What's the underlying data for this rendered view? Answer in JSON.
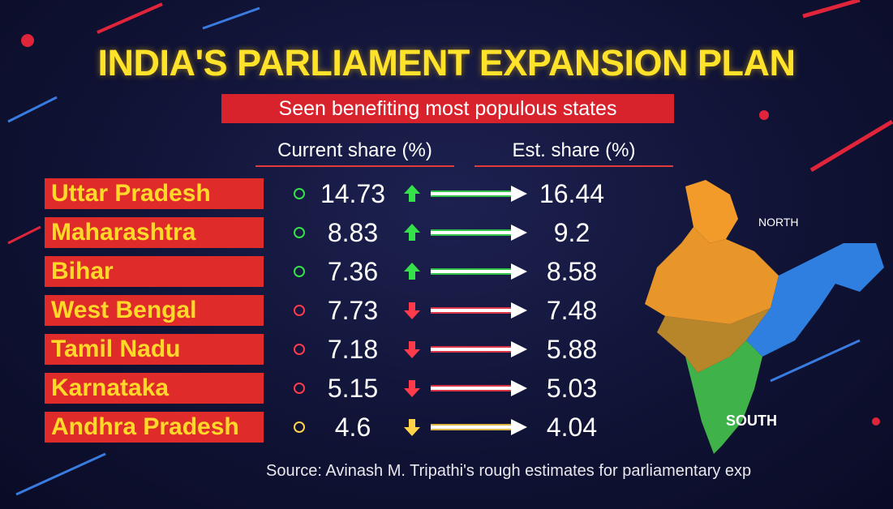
{
  "header": {
    "title": "INDIA'S PARLIAMENT EXPANSION PLAN",
    "subtitle": "Seen benefiting most populous states"
  },
  "table": {
    "columns": [
      "Current share (%)",
      "Est. share (%)"
    ],
    "rows": [
      {
        "state": "Uttar Pradesh",
        "current": 14.73,
        "estimated": 16.44
      },
      {
        "state": "Maharashtra",
        "current": 8.83,
        "estimated": 9.2
      },
      {
        "state": "Bihar",
        "current": 7.36,
        "estimated": 8.58
      },
      {
        "state": "West Bengal",
        "current": 7.73,
        "estimated": 7.48
      },
      {
        "state": "Tamil Nadu",
        "current": 7.18,
        "estimated": 5.88
      },
      {
        "state": "Karnataka",
        "current": 5.15,
        "estimated": 5.03
      },
      {
        "state": "Andhra Pradesh",
        "current": 4.6,
        "estimated": 4.04
      }
    ]
  },
  "map": {
    "north_label": "NORTH",
    "south_label": "SOUTH"
  },
  "footer": {
    "source": "Source: Avinash M. Tripathi's rough estimates for parliamentary exp"
  }
}
